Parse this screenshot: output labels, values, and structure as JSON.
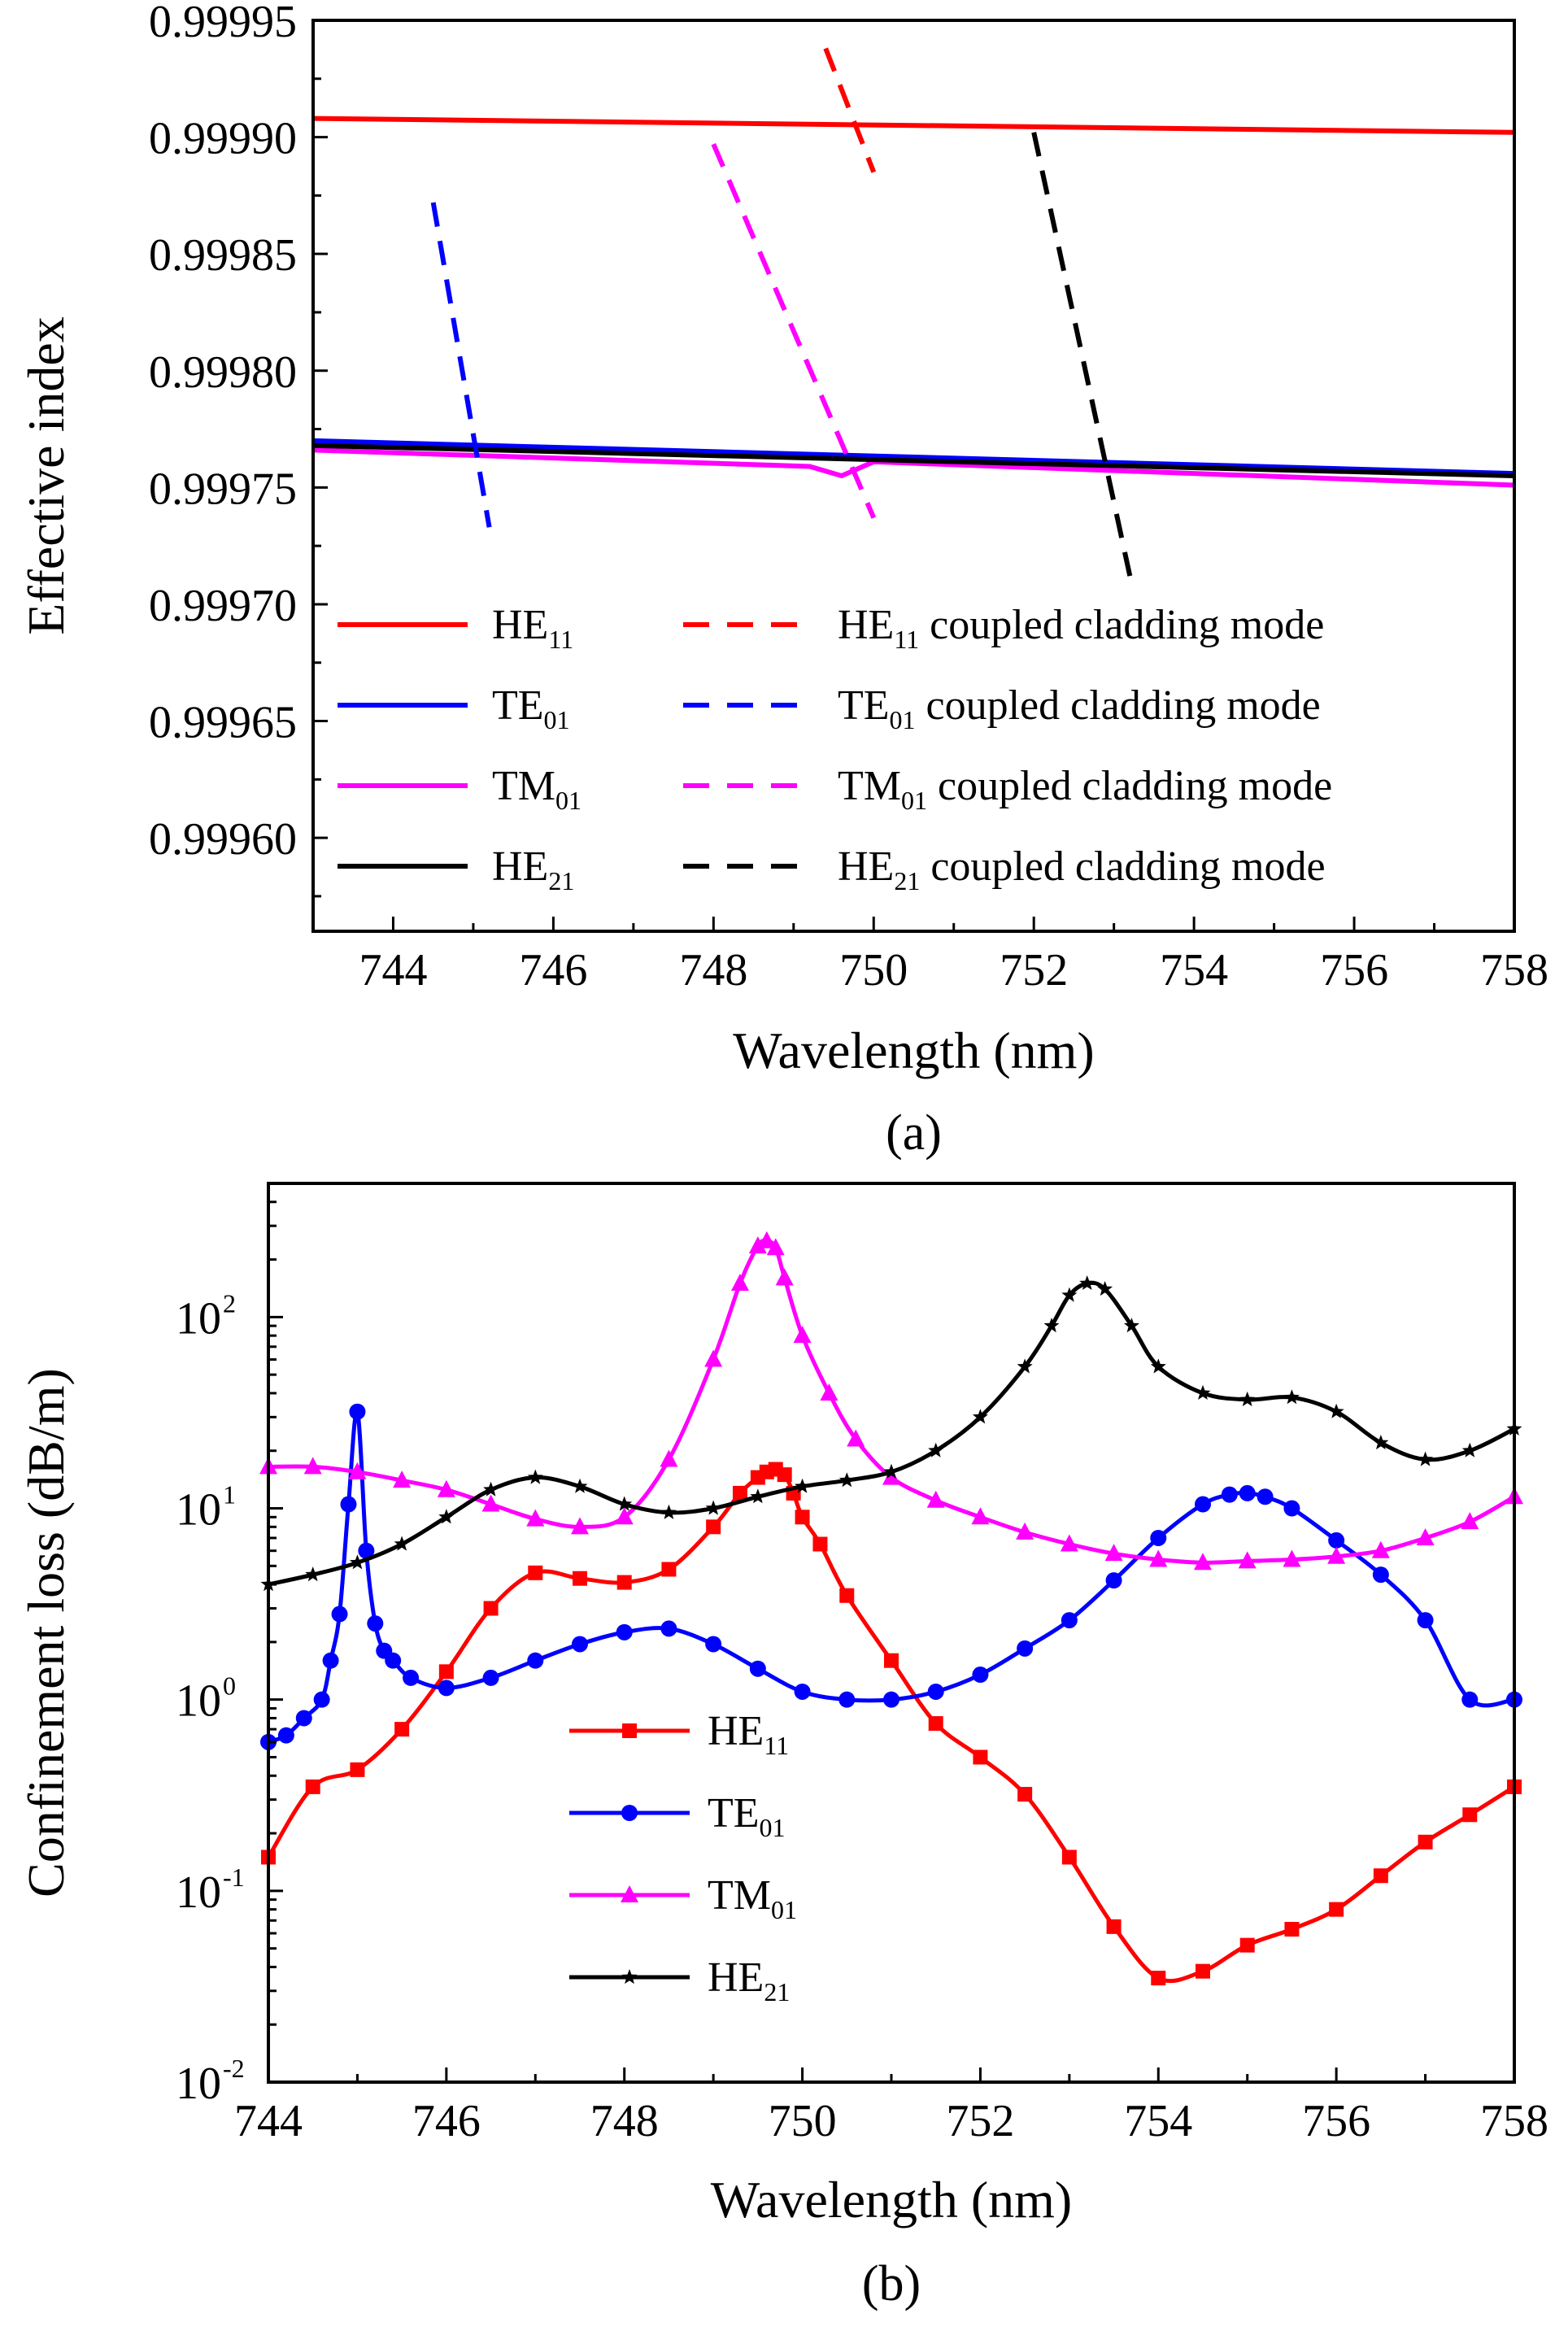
{
  "chart_data": [
    {
      "type": "line",
      "panel_label": "(a)",
      "xlabel": "Wavelength (nm)",
      "ylabel": "Effective index",
      "xlim": [
        743,
        758
      ],
      "ylim": [
        0.99956,
        0.99995
      ],
      "xticks": [
        744,
        746,
        748,
        750,
        752,
        754,
        756,
        758
      ],
      "xtick_labels": [
        "744",
        "746",
        "748",
        "750",
        "752",
        "754",
        "756",
        "758"
      ],
      "yticks": [
        0.9996,
        0.99965,
        0.9997,
        0.99975,
        0.9998,
        0.99985,
        0.9999,
        0.99995
      ],
      "ytick_labels": [
        "0.99960",
        "0.99965",
        "0.99970",
        "0.99975",
        "0.99980",
        "0.99985",
        "0.99990",
        "0.99995"
      ],
      "legend_position": "bottom",
      "series": [
        {
          "name": "HE11",
          "main": "HE",
          "sub": "11",
          "color": "#ff0000",
          "style": "solid",
          "points": [
            [
              743,
              0.999908
            ],
            [
              758,
              0.999902
            ]
          ]
        },
        {
          "name": "TE01",
          "main": "TE",
          "sub": "01",
          "color": "#0000ff",
          "style": "solid",
          "points": [
            [
              743,
              0.99977
            ],
            [
              758,
              0.999756
            ]
          ]
        },
        {
          "name": "TM01",
          "main": "TM",
          "sub": "01",
          "color": "#ff00ff",
          "style": "solid",
          "points": [
            [
              743,
              0.999766
            ],
            [
              749.2,
              0.999759
            ],
            [
              749.6,
              0.999755
            ],
            [
              750.0,
              0.999761
            ],
            [
              758,
              0.999751
            ]
          ]
        },
        {
          "name": "HE21",
          "main": "HE",
          "sub": "21",
          "color": "#000000",
          "style": "solid",
          "points": [
            [
              743,
              0.999768
            ],
            [
              758,
              0.999755
            ]
          ]
        },
        {
          "name": "HE11 coupled cladding mode",
          "main": "HE",
          "sub": "11",
          "suffix": " coupled cladding mode",
          "color": "#ff0000",
          "style": "dashed",
          "points": [
            [
              749.4,
              0.999938
            ],
            [
              750.0,
              0.999885
            ]
          ]
        },
        {
          "name": "TE01 coupled cladding mode",
          "main": "TE",
          "sub": "01",
          "suffix": " coupled cladding mode",
          "color": "#0000ff",
          "style": "dashed",
          "points": [
            [
              744.5,
              0.999872
            ],
            [
              745.2,
              0.999733
            ]
          ]
        },
        {
          "name": "TM01 coupled cladding mode",
          "main": "TM",
          "sub": "01",
          "suffix": " coupled cladding mode",
          "color": "#ff00ff",
          "style": "dashed",
          "points": [
            [
              748.0,
              0.999897
            ],
            [
              750.0,
              0.999737
            ]
          ]
        },
        {
          "name": "HE21 coupled cladding mode",
          "main": "HE",
          "sub": "21",
          "suffix": " coupled cladding mode",
          "color": "#000000",
          "style": "dashed",
          "points": [
            [
              752.0,
              0.999902
            ],
            [
              753.2,
              0.999712
            ]
          ]
        }
      ]
    },
    {
      "type": "line",
      "panel_label": "(b)",
      "xlabel": "Wavelength (nm)",
      "ylabel": "Confinement loss (dB/m)",
      "yscale": "log",
      "xlim": [
        744,
        758
      ],
      "ylim": [
        0.01,
        500
      ],
      "xticks": [
        744,
        746,
        748,
        750,
        752,
        754,
        756,
        758
      ],
      "xtick_labels": [
        "744",
        "746",
        "748",
        "750",
        "752",
        "754",
        "756",
        "758"
      ],
      "yticks": [
        0.01,
        0.1,
        1,
        10,
        100
      ],
      "ytick_labels": [
        {
          "base": "10",
          "exp": "-2"
        },
        {
          "base": "10",
          "exp": "-1"
        },
        {
          "base": "10",
          "exp": "0"
        },
        {
          "base": "10",
          "exp": "1"
        },
        {
          "base": "10",
          "exp": "2"
        }
      ],
      "legend_position": "bottom-left",
      "series": [
        {
          "name": "HE11",
          "main": "HE",
          "sub": "11",
          "color": "#ff0000",
          "marker": "square",
          "x": [
            744,
            744.5,
            745,
            745.5,
            746,
            746.5,
            747,
            747.5,
            748,
            748.5,
            749,
            749.3,
            749.5,
            749.6,
            749.7,
            749.8,
            749.9,
            750,
            750.2,
            750.5,
            751,
            751.5,
            752,
            752.5,
            753,
            753.5,
            754,
            754.5,
            755,
            755.5,
            756,
            756.5,
            757,
            757.5,
            758
          ],
          "values": [
            0.15,
            0.35,
            0.43,
            0.7,
            1.4,
            3.0,
            4.6,
            4.3,
            4.1,
            4.8,
            8.0,
            12.0,
            14.5,
            15.5,
            16.0,
            15.0,
            12.0,
            9.0,
            6.5,
            3.5,
            1.6,
            0.75,
            0.5,
            0.32,
            0.15,
            0.065,
            0.035,
            0.038,
            0.052,
            0.063,
            0.08,
            0.12,
            0.18,
            0.25,
            0.35
          ]
        },
        {
          "name": "TE01",
          "main": "TE",
          "sub": "01",
          "color": "#0000ff",
          "marker": "circle",
          "x": [
            744,
            744.2,
            744.4,
            744.6,
            744.7,
            744.8,
            744.9,
            745,
            745.1,
            745.2,
            745.3,
            745.4,
            745.6,
            746,
            746.5,
            747,
            747.5,
            748,
            748.5,
            749,
            749.5,
            750,
            750.5,
            751,
            751.5,
            752,
            752.5,
            753,
            753.5,
            754,
            754.5,
            754.8,
            755,
            755.2,
            755.5,
            756,
            756.5,
            757,
            757.5,
            758
          ],
          "values": [
            0.6,
            0.65,
            0.8,
            1.0,
            1.6,
            2.8,
            10.5,
            32.0,
            6.0,
            2.5,
            1.8,
            1.6,
            1.3,
            1.15,
            1.3,
            1.6,
            1.95,
            2.25,
            2.35,
            1.95,
            1.45,
            1.1,
            1.0,
            1.0,
            1.1,
            1.35,
            1.85,
            2.6,
            4.2,
            7.0,
            10.5,
            11.8,
            12.0,
            11.5,
            10.0,
            6.8,
            4.5,
            2.6,
            1.0,
            1.0
          ]
        },
        {
          "name": "TM01",
          "main": "TM",
          "sub": "01",
          "color": "#ff00ff",
          "marker": "triangle",
          "x": [
            744,
            744.5,
            745,
            745.5,
            746,
            746.5,
            747,
            747.5,
            748,
            748.5,
            749,
            749.3,
            749.5,
            749.6,
            749.7,
            749.8,
            750,
            750.3,
            750.6,
            751,
            751.5,
            752,
            752.5,
            753,
            753.5,
            754,
            754.5,
            755,
            755.5,
            756,
            756.5,
            757,
            757.5,
            758
          ],
          "values": [
            16.5,
            16.5,
            15.5,
            14.0,
            12.5,
            10.5,
            8.8,
            8.0,
            9.0,
            18.0,
            60.0,
            150.0,
            235.0,
            250.0,
            230.0,
            160.0,
            80.0,
            40.0,
            23.0,
            14.5,
            11.0,
            9.0,
            7.5,
            6.5,
            5.8,
            5.4,
            5.2,
            5.3,
            5.4,
            5.6,
            6.0,
            7.0,
            8.5,
            11.5
          ]
        },
        {
          "name": "HE21",
          "main": "HE",
          "sub": "21",
          "color": "#000000",
          "marker": "star",
          "x": [
            744,
            744.5,
            745,
            745.5,
            746,
            746.5,
            747,
            747.5,
            748,
            748.5,
            749,
            749.5,
            750,
            750.5,
            751,
            751.5,
            752,
            752.5,
            752.8,
            753,
            753.2,
            753.4,
            753.7,
            754,
            754.5,
            755,
            755.5,
            756,
            756.5,
            757,
            757.5,
            758
          ],
          "values": [
            4.0,
            4.5,
            5.2,
            6.5,
            9.0,
            12.5,
            14.5,
            13.0,
            10.5,
            9.5,
            10.0,
            11.5,
            13.0,
            14.0,
            15.5,
            20.0,
            30.0,
            55.0,
            90.0,
            130.0,
            150.0,
            140.0,
            90.0,
            55.0,
            40.0,
            37.0,
            38.0,
            32.0,
            22.0,
            18.0,
            20.0,
            26.0
          ]
        }
      ]
    }
  ]
}
